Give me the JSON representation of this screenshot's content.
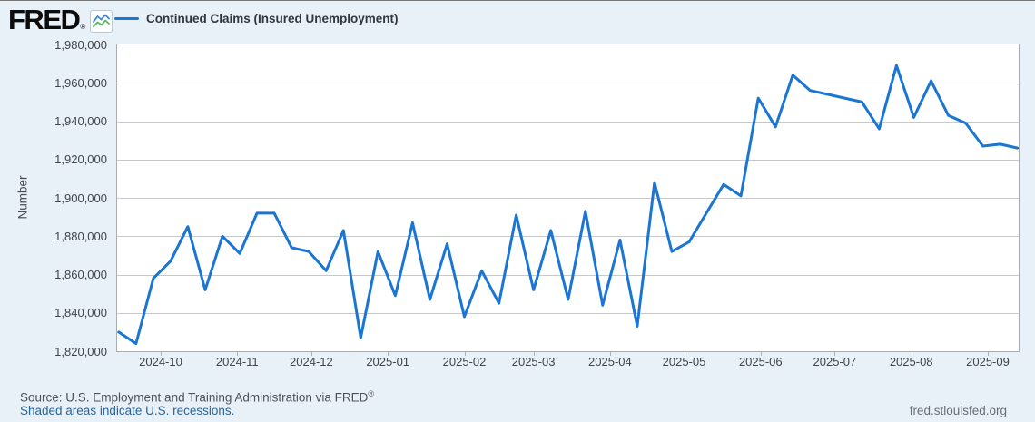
{
  "header": {
    "logo_text": "FRED",
    "logo_registered_mark": "®",
    "legend": {
      "label": "Continued Claims (Insured Unemployment)",
      "line_color": "#1a76d2"
    }
  },
  "chart": {
    "y_axis_title": "Number",
    "y_tick_labels": [
      "1,980,000",
      "1,960,000",
      "1,940,000",
      "1,920,000",
      "1,900,000",
      "1,880,000",
      "1,860,000",
      "1,840,000",
      "1,820,000"
    ],
    "x_tick_labels": [
      "2024-10",
      "2024-11",
      "2024-12",
      "2025-01",
      "2025-02",
      "2025-03",
      "2025-04",
      "2025-05",
      "2025-06",
      "2025-07",
      "2025-08",
      "2025-09"
    ],
    "line_color": "#1a76d2",
    "gridline_color": "#c9c9c9",
    "plot_background": "#ffffff",
    "page_background": "#e8f0f8"
  },
  "chart_data": {
    "type": "line",
    "series_name": "Continued Claims (Insured Unemployment)",
    "ylabel": "Number",
    "ylim": [
      1820000,
      1980000
    ],
    "y_tick_step": 20000,
    "grid": true,
    "legend_position": "top-left",
    "x": [
      "2024-09-14",
      "2024-09-21",
      "2024-09-28",
      "2024-10-05",
      "2024-10-12",
      "2024-10-19",
      "2024-10-26",
      "2024-11-02",
      "2024-11-09",
      "2024-11-16",
      "2024-11-23",
      "2024-11-30",
      "2024-12-07",
      "2024-12-14",
      "2024-12-21",
      "2024-12-28",
      "2025-01-04",
      "2025-01-11",
      "2025-01-18",
      "2025-01-25",
      "2025-02-01",
      "2025-02-08",
      "2025-02-15",
      "2025-02-22",
      "2025-03-01",
      "2025-03-08",
      "2025-03-15",
      "2025-03-22",
      "2025-03-29",
      "2025-04-05",
      "2025-04-12",
      "2025-04-19",
      "2025-04-26",
      "2025-05-03",
      "2025-05-10",
      "2025-05-17",
      "2025-05-24",
      "2025-05-31",
      "2025-06-07",
      "2025-06-14",
      "2025-06-21",
      "2025-06-28",
      "2025-07-05",
      "2025-07-12",
      "2025-07-19",
      "2025-07-26",
      "2025-08-02",
      "2025-08-09",
      "2025-08-16",
      "2025-08-23",
      "2025-08-30",
      "2025-09-06",
      "2025-09-13"
    ],
    "values": [
      1830000,
      1824000,
      1858000,
      1867000,
      1885000,
      1852000,
      1880000,
      1871000,
      1892000,
      1892000,
      1874000,
      1872000,
      1862000,
      1883000,
      1827000,
      1872000,
      1849000,
      1887000,
      1847000,
      1876000,
      1838000,
      1862000,
      1845000,
      1891000,
      1852000,
      1883000,
      1847000,
      1893000,
      1844000,
      1878000,
      1833000,
      1908000,
      1872000,
      1877000,
      1892000,
      1907000,
      1901000,
      1952000,
      1937000,
      1964000,
      1956000,
      1954000,
      1952000,
      1950000,
      1936000,
      1969000,
      1942000,
      1961000,
      1943000,
      1939000,
      1927000,
      1928000,
      1926000
    ]
  },
  "footer": {
    "source_text": "Source: U.S. Employment and Training Administration via FRED",
    "source_registered_mark": "®",
    "recession_note": "Shaded areas indicate U.S. recessions.",
    "site_link": "fred.stlouisfed.org"
  }
}
